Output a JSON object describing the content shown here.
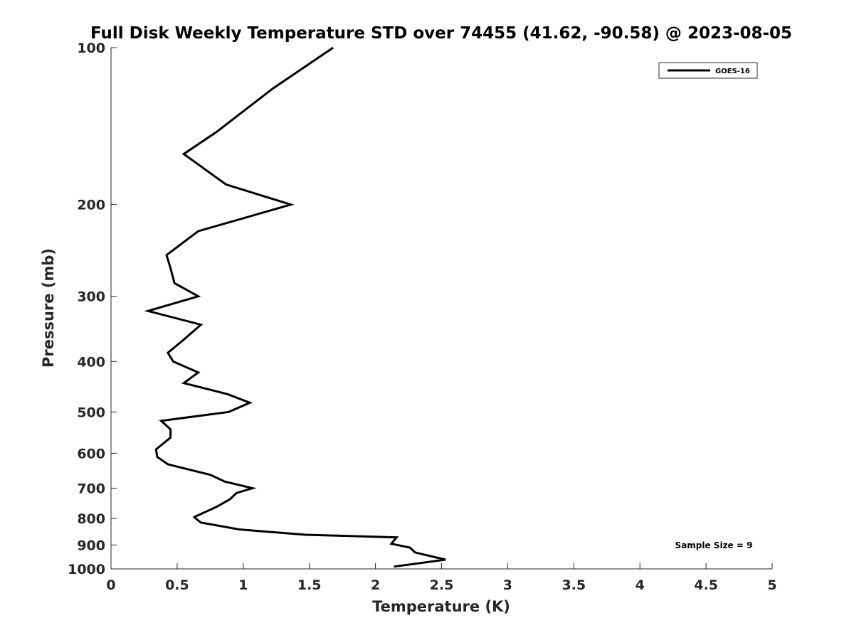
{
  "chart_data": {
    "type": "line",
    "title": "Full Disk Weekly Temperature STD over 74455 (41.62, -90.58) @ 2023-08-05",
    "xlabel": "Temperature (K)",
    "ylabel": "Pressure (mb)",
    "xlim": [
      0,
      5
    ],
    "ylim": [
      100,
      1000
    ],
    "yscale": "log",
    "y_reversed": true,
    "grid": false,
    "legend_position": "top-right",
    "x_ticks": [
      0,
      0.5,
      1,
      1.5,
      2,
      2.5,
      3,
      3.5,
      4,
      4.5,
      5
    ],
    "x_tick_labels": [
      "0",
      "0.5",
      "1",
      "1.5",
      "2",
      "2.5",
      "3",
      "3.5",
      "4",
      "4.5",
      "5"
    ],
    "y_ticks": [
      100,
      200,
      300,
      400,
      500,
      600,
      700,
      800,
      900,
      1000
    ],
    "y_tick_labels": [
      "100",
      "200",
      "300",
      "400",
      "500",
      "600",
      "700",
      "800",
      "900",
      "1000"
    ],
    "annotation": "Sample Size = 9",
    "series": [
      {
        "name": "GOES-16",
        "color": "#000000",
        "x": [
          1.68,
          1.22,
          0.8,
          0.55,
          0.87,
          1.36,
          0.66,
          0.42,
          0.45,
          0.48,
          0.66,
          0.28,
          0.68,
          0.54,
          0.43,
          0.47,
          0.66,
          0.55,
          0.88,
          1.05,
          0.89,
          0.38,
          0.45,
          0.45,
          0.34,
          0.35,
          0.43,
          0.75,
          0.86,
          1.07,
          0.95,
          0.9,
          0.8,
          0.63,
          0.64,
          0.68,
          0.97,
          1.47,
          2.16,
          2.12,
          2.26,
          2.3,
          2.53,
          2.14
        ],
        "y": [
          100,
          120,
          145,
          160,
          183,
          200,
          225,
          250,
          265,
          283,
          300,
          320,
          340,
          365,
          385,
          400,
          420,
          440,
          462,
          480,
          500,
          520,
          540,
          560,
          590,
          610,
          630,
          660,
          680,
          700,
          715,
          735,
          760,
          795,
          800,
          815,
          840,
          860,
          870,
          895,
          910,
          930,
          960,
          990
        ]
      }
    ]
  }
}
